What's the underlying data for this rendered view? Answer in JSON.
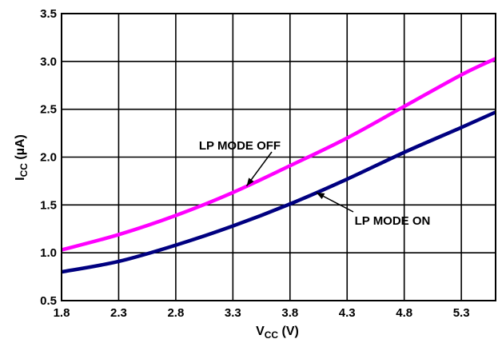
{
  "chart_data": {
    "type": "line",
    "title": "",
    "xlabel": {
      "main": "V",
      "sub": "CC",
      "unit": " (V)"
    },
    "ylabel": {
      "main": "I",
      "sub": "CC",
      "unit": " (µA)"
    },
    "xlim": [
      1.8,
      5.6
    ],
    "ylim": [
      0.5,
      3.5
    ],
    "x_ticks": [
      1.8,
      2.3,
      2.8,
      3.3,
      3.8,
      4.3,
      4.8,
      5.3
    ],
    "x_tick_labels": [
      "1.8",
      "2.3",
      "2.8",
      "3.3",
      "3.8",
      "4.3",
      "4.8",
      "5.3"
    ],
    "y_ticks": [
      0.5,
      1.0,
      1.5,
      2.0,
      2.5,
      3.0,
      3.5
    ],
    "y_tick_labels": [
      "0.5",
      "1.0",
      "1.5",
      "2.0",
      "2.5",
      "3.0",
      "3.5"
    ],
    "x_grid_extra": [
      5.6
    ],
    "grid": true,
    "series": [
      {
        "name": "LP MODE OFF",
        "color": "#ff00ff",
        "x": [
          1.8,
          2.3,
          2.8,
          3.3,
          3.8,
          4.3,
          4.8,
          5.3,
          5.6
        ],
        "y": [
          1.03,
          1.19,
          1.39,
          1.63,
          1.91,
          2.2,
          2.53,
          2.86,
          3.03
        ]
      },
      {
        "name": "LP MODE ON",
        "color": "#000080",
        "x": [
          1.8,
          2.3,
          2.8,
          3.3,
          3.8,
          4.3,
          4.8,
          5.3,
          5.6
        ],
        "y": [
          0.8,
          0.91,
          1.08,
          1.28,
          1.51,
          1.77,
          2.05,
          2.31,
          2.47
        ]
      }
    ],
    "annotations": [
      {
        "text": "LP MODE OFF",
        "series": 0,
        "arrow_to_x": 3.42
      },
      {
        "text": "LP MODE ON",
        "series": 1,
        "arrow_to_x": 4.03
      }
    ]
  }
}
